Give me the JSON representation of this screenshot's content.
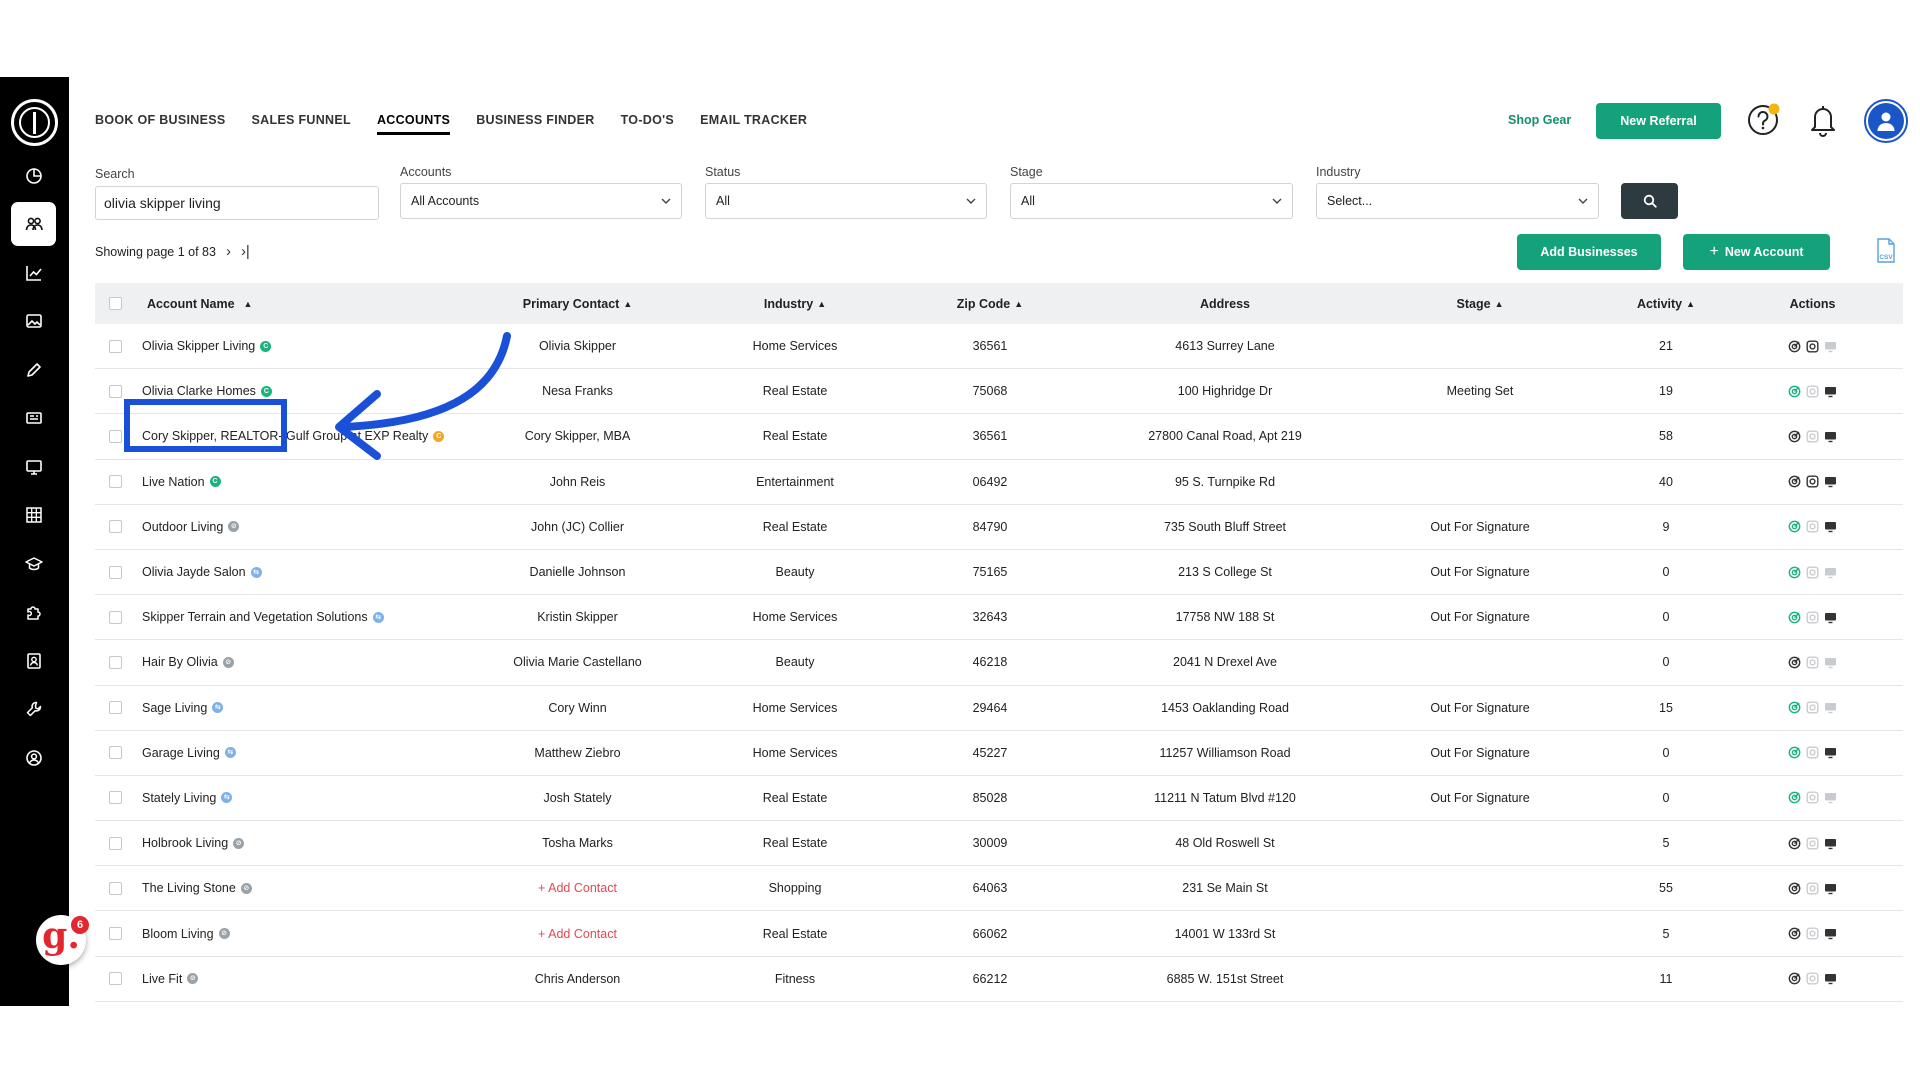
{
  "nav": {
    "tabs": [
      {
        "label": "BOOK OF BUSINESS"
      },
      {
        "label": "SALES FUNNEL"
      },
      {
        "label": "ACCOUNTS",
        "active": true
      },
      {
        "label": "BUSINESS FINDER"
      },
      {
        "label": "TO-DO'S"
      },
      {
        "label": "EMAIL TRACKER"
      }
    ],
    "shop_gear": "Shop Gear",
    "new_referral": "New Referral"
  },
  "rail": {
    "items": [
      {
        "icon": "pie-chart-icon"
      },
      {
        "icon": "people-icon",
        "active": true
      },
      {
        "icon": "line-chart-icon"
      },
      {
        "icon": "image-icon"
      },
      {
        "icon": "pencil-icon"
      },
      {
        "icon": "newspaper-icon"
      },
      {
        "icon": "monitor-icon"
      },
      {
        "icon": "grid-icon"
      },
      {
        "icon": "graduation-cap-icon"
      },
      {
        "icon": "puzzle-icon"
      },
      {
        "icon": "contact-card-icon"
      },
      {
        "icon": "wrench-icon"
      },
      {
        "icon": "user-circle-icon"
      }
    ],
    "widget_letter": "g.",
    "widget_count": "6"
  },
  "filters": {
    "search_label": "Search",
    "search_value": "olivia skipper living",
    "accounts_label": "Accounts",
    "accounts_value": "All Accounts",
    "status_label": "Status",
    "status_value": "All",
    "stage_label": "Stage",
    "stage_value": "All",
    "industry_label": "Industry",
    "industry_value": "Select..."
  },
  "paging": {
    "text": "Showing page 1 of 83"
  },
  "actions": {
    "add_businesses": "Add Businesses",
    "new_account": "New Account",
    "csv": "CSV"
  },
  "table": {
    "headers": {
      "account_name": "Account Name",
      "primary_contact": "Primary Contact",
      "industry": "Industry",
      "zip_code": "Zip Code",
      "address": "Address",
      "stage": "Stage",
      "activity": "Activity",
      "actions": "Actions"
    },
    "rows": [
      {
        "name": "Olivia Skipper Living",
        "dot": "green",
        "contact": "Olivia Skipper",
        "industry": "Home Services",
        "zip": "36561",
        "address": "4613 Surrey Lane",
        "stage": "",
        "activity": "21",
        "icons": [
          "dark",
          "dark",
          "light"
        ]
      },
      {
        "name": "Olivia Clarke Homes",
        "dot": "green",
        "contact": "Nesa Franks",
        "industry": "Real Estate",
        "zip": "75068",
        "address": "100 Highridge Dr",
        "stage": "Meeting Set",
        "activity": "19",
        "icons": [
          "green",
          "light",
          "dark"
        ]
      },
      {
        "name": "Cory Skipper, REALTOR- Gulf Group at EXP Realty",
        "dot": "orange",
        "contact": "Cory Skipper, MBA",
        "industry": "Real Estate",
        "zip": "36561",
        "address": "27800 Canal Road, Apt 219",
        "stage": "",
        "activity": "58",
        "icons": [
          "dark",
          "light",
          "dark"
        ]
      },
      {
        "name": "Live Nation",
        "dot": "green",
        "contact": "John Reis",
        "industry": "Entertainment",
        "zip": "06492",
        "address": "95 S. Turnpike Rd",
        "stage": "",
        "activity": "40",
        "icons": [
          "dark",
          "dark",
          "dark"
        ]
      },
      {
        "name": "Outdoor Living",
        "dot": "grey",
        "contact": "John (JC) Collier",
        "industry": "Real Estate",
        "zip": "84790",
        "address": "735 South Bluff Street",
        "stage": "Out For Signature",
        "activity": "9",
        "icons": [
          "green",
          "light",
          "dark"
        ]
      },
      {
        "name": "Olivia Jayde Salon",
        "dot": "blue",
        "contact": "Danielle Johnson",
        "industry": "Beauty",
        "zip": "75165",
        "address": "213 S College St",
        "stage": "Out For Signature",
        "activity": "0",
        "icons": [
          "green",
          "light",
          "light"
        ]
      },
      {
        "name": "Skipper Terrain and Vegetation Solutions",
        "dot": "blue",
        "contact": "Kristin Skipper",
        "industry": "Home Services",
        "zip": "32643",
        "address": "17758 NW 188 St",
        "stage": "Out For Signature",
        "activity": "0",
        "icons": [
          "green",
          "light",
          "dark"
        ]
      },
      {
        "name": "Hair By Olivia",
        "dot": "grey",
        "contact": "Olivia Marie Castellano",
        "industry": "Beauty",
        "zip": "46218",
        "address": "2041 N Drexel Ave",
        "stage": "",
        "activity": "0",
        "icons": [
          "dark",
          "light",
          "light"
        ]
      },
      {
        "name": "Sage Living",
        "dot": "blue",
        "contact": "Cory Winn",
        "industry": "Home Services",
        "zip": "29464",
        "address": "1453 Oaklanding Road",
        "stage": "Out For Signature",
        "activity": "15",
        "icons": [
          "green",
          "light",
          "light"
        ]
      },
      {
        "name": "Garage Living",
        "dot": "blue",
        "contact": "Matthew Ziebro",
        "industry": "Home Services",
        "zip": "45227",
        "address": "11257 Williamson Road",
        "stage": "Out For Signature",
        "activity": "0",
        "icons": [
          "green",
          "light",
          "dark"
        ]
      },
      {
        "name": "Stately Living",
        "dot": "blue",
        "contact": "Josh Stately",
        "industry": "Real Estate",
        "zip": "85028",
        "address": "11211 N Tatum Blvd #120",
        "stage": "Out For Signature",
        "activity": "0",
        "icons": [
          "green",
          "light",
          "light"
        ]
      },
      {
        "name": "Holbrook Living",
        "dot": "grey",
        "contact": "Tosha Marks",
        "industry": "Real Estate",
        "zip": "30009",
        "address": "48 Old Roswell St",
        "stage": "",
        "activity": "5",
        "icons": [
          "dark",
          "light",
          "dark"
        ]
      },
      {
        "name": "The Living Stone",
        "dot": "grey",
        "contact": "+ Add Contact",
        "contact_missing": true,
        "industry": "Shopping",
        "zip": "64063",
        "address": "231 Se Main St",
        "stage": "",
        "activity": "55",
        "icons": [
          "dark",
          "light",
          "dark"
        ]
      },
      {
        "name": "Bloom Living",
        "dot": "grey",
        "contact": "+ Add Contact",
        "contact_missing": true,
        "industry": "Real Estate",
        "zip": "66062",
        "address": "14001 W 133rd St",
        "stage": "",
        "activity": "5",
        "icons": [
          "dark",
          "light",
          "dark"
        ]
      },
      {
        "name": "Live Fit",
        "dot": "grey",
        "contact": "Chris Anderson",
        "industry": "Fitness",
        "zip": "66212",
        "address": "6885 W. 151st Street",
        "stage": "",
        "activity": "11",
        "icons": [
          "dark",
          "light",
          "dark"
        ]
      }
    ]
  },
  "colors": {
    "brand_green": "#14a27a",
    "annotation_blue": "#1a50d8",
    "add_contact_red": "#e5484d"
  }
}
